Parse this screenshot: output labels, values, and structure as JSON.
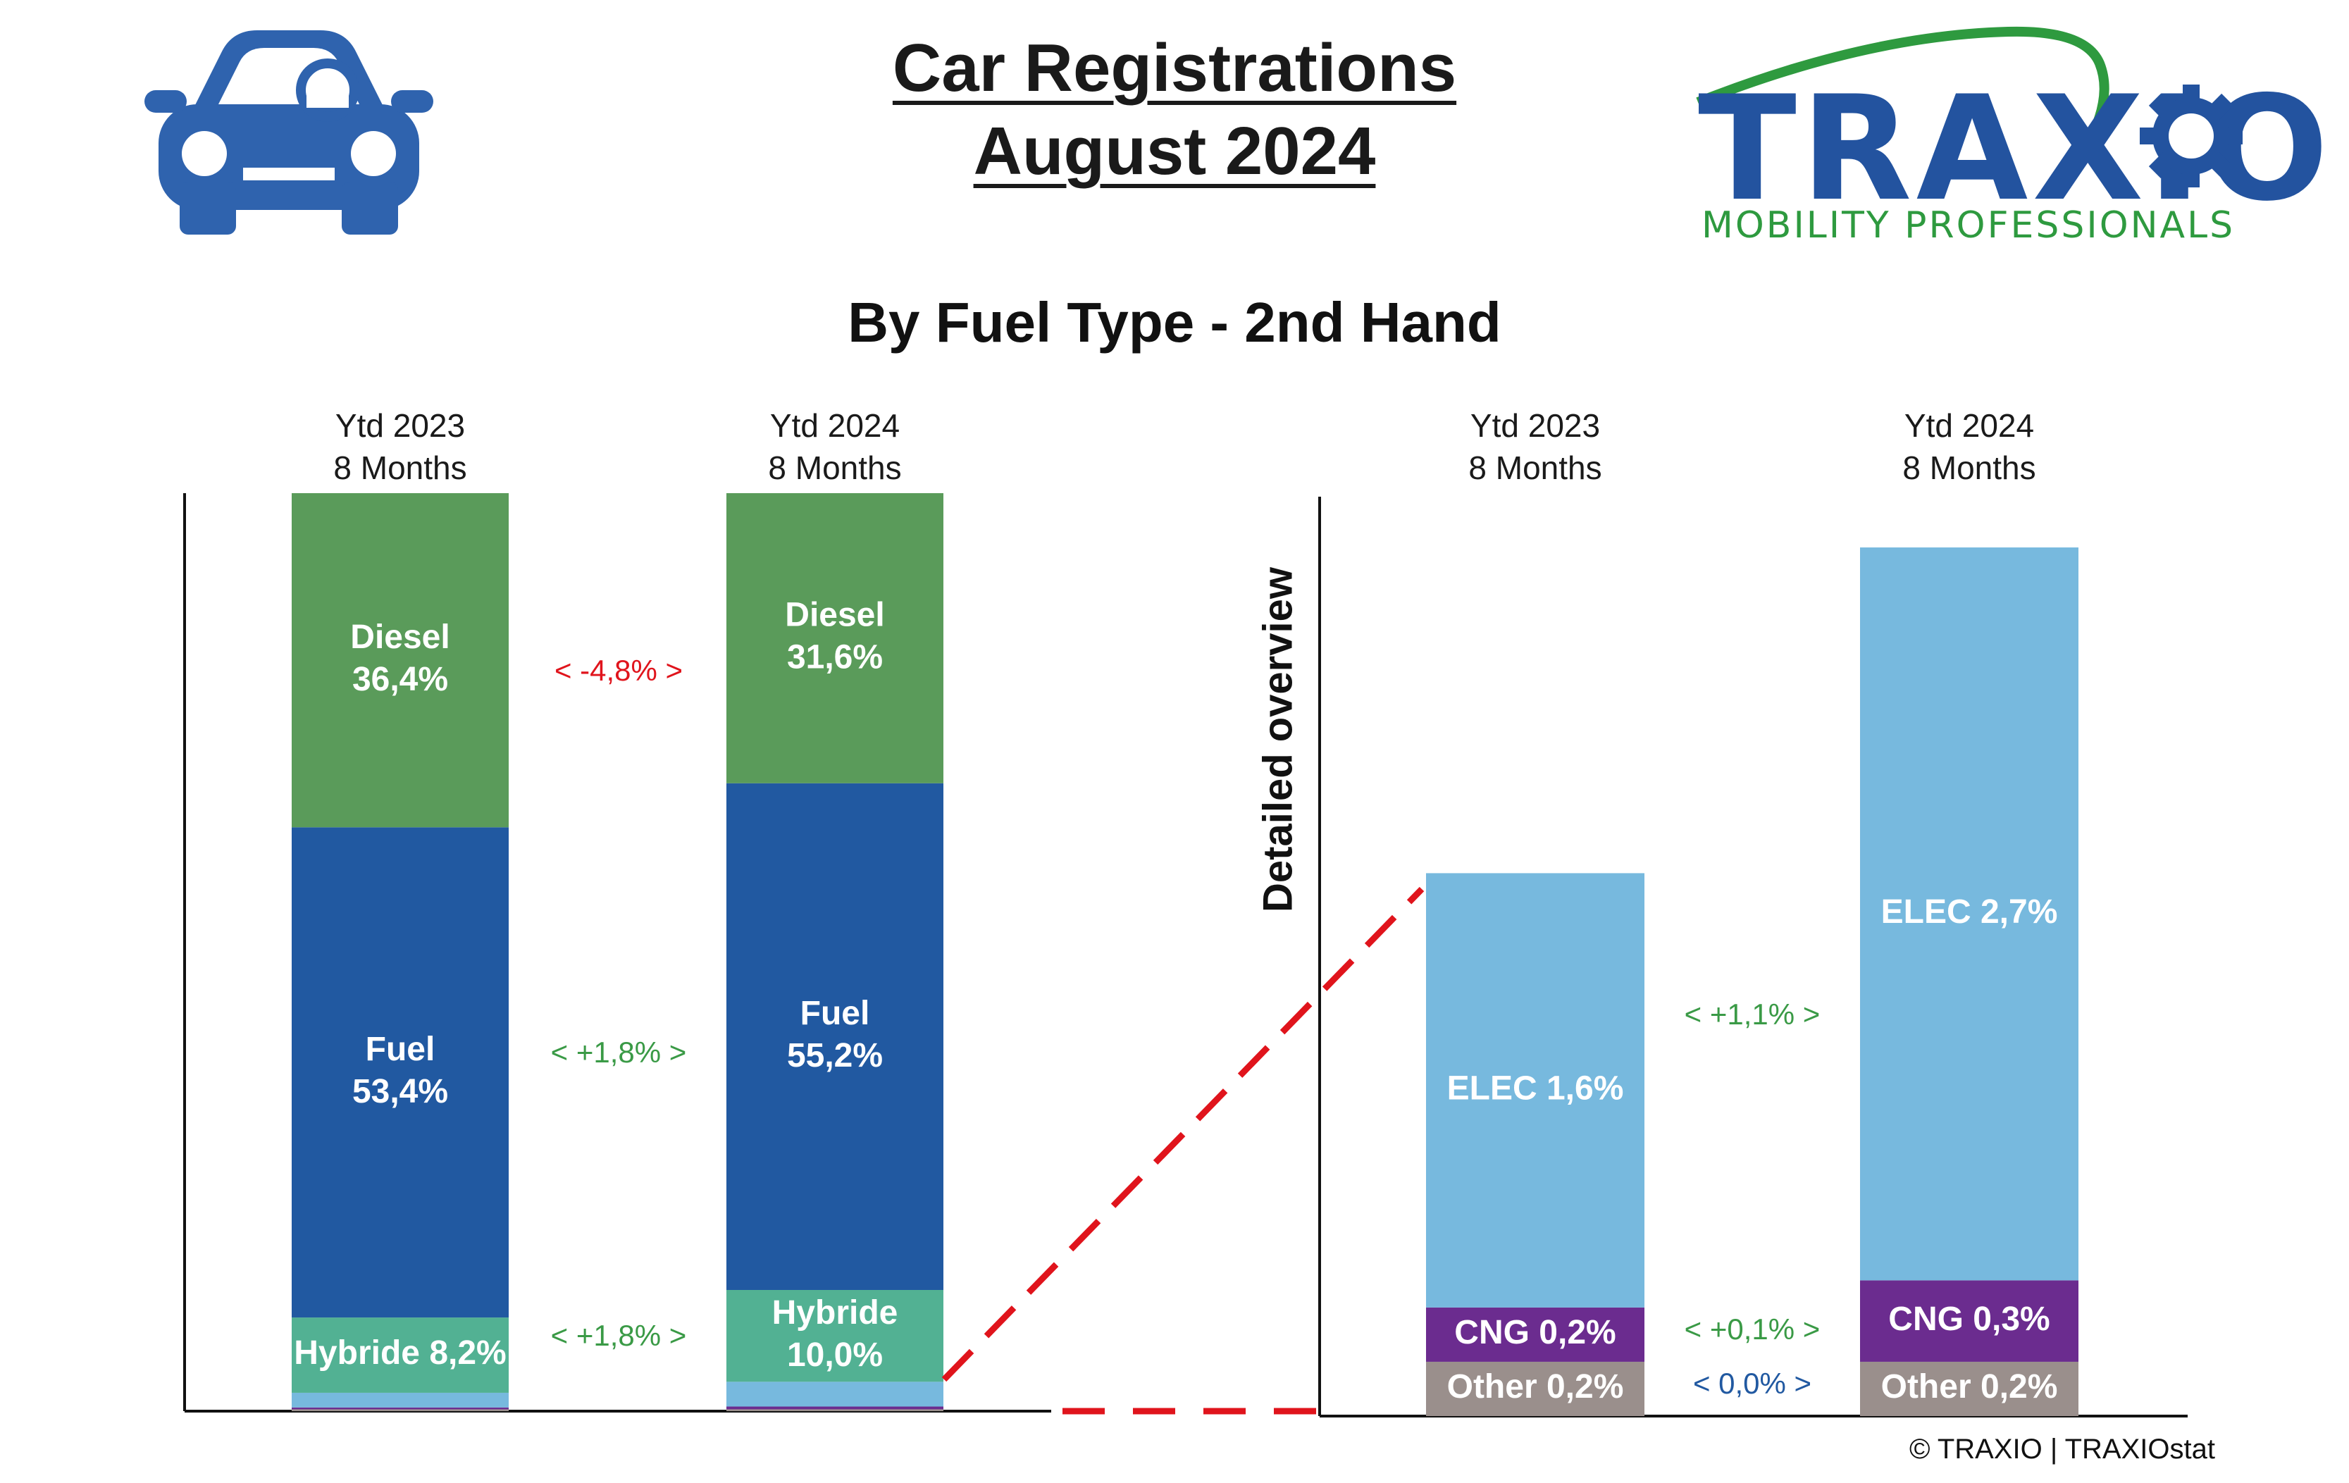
{
  "header": {
    "title_line1": "Car Registrations",
    "title_line2": "August 2024",
    "subtitle": "By Fuel Type - 2nd Hand",
    "logo_name": "TRAXIO",
    "logo_tagline": "MOBILITY PROFESSIONALS",
    "car_icon": "car-front-icon",
    "gear_icon": "gear-icon"
  },
  "footer": {
    "copyright": "© TRAXIO | TRAXIOstat"
  },
  "colors": {
    "diesel": "#5a9b5a",
    "fuel": "#2159a1",
    "hybride": "#52b193",
    "elec": "#77b9de",
    "cng": "#6b2c8f",
    "other": "#9a8f8c",
    "positive": "#3a9a46",
    "negative": "#e0141c",
    "neutral": "#2159a1",
    "connector": "#e0141c",
    "brand_blue": "#23539f",
    "brand_green": "#2e9a3f"
  },
  "chart_data": [
    {
      "type": "bar",
      "stacked": true,
      "categories": [
        "Ytd 2023\n8 Months",
        "Ytd 2024\n8 Months"
      ],
      "category_lines": [
        [
          "Ytd 2023",
          "8 Months"
        ],
        [
          "Ytd 2024",
          "8 Months"
        ]
      ],
      "ylim": [
        0,
        100
      ],
      "series": [
        {
          "name": "Other",
          "values": [
            0.2,
            0.2
          ],
          "labels": [
            "",
            ""
          ]
        },
        {
          "name": "CNG",
          "values": [
            0.2,
            0.3
          ],
          "labels": [
            "",
            ""
          ]
        },
        {
          "name": "ELEC",
          "values": [
            1.6,
            2.7
          ],
          "labels": [
            "",
            ""
          ]
        },
        {
          "name": "Hybride",
          "values": [
            8.2,
            10.0
          ],
          "labels": [
            [
              "Hybride 8,2%"
            ],
            [
              "Hybride",
              "10,0%"
            ]
          ]
        },
        {
          "name": "Fuel",
          "values": [
            53.4,
            55.2
          ],
          "labels": [
            [
              "Fuel",
              "53,4%"
            ],
            [
              "Fuel",
              "55,2%"
            ]
          ]
        },
        {
          "name": "Diesel",
          "values": [
            36.4,
            31.6
          ],
          "labels": [
            [
              "Diesel",
              "36,4%"
            ],
            [
              "Diesel",
              "31,6%"
            ]
          ]
        }
      ],
      "changes": [
        {
          "series": "Diesel",
          "text": "<  -4,8%  >",
          "sign": "negative"
        },
        {
          "series": "Fuel",
          "text": "<  +1,8%  >",
          "sign": "positive"
        },
        {
          "series": "Hybride",
          "text": "<  +1,8%  >",
          "sign": "positive"
        }
      ]
    },
    {
      "type": "bar",
      "stacked": true,
      "title": "Detailed overview",
      "categories": [
        "Ytd 2023\n8 Months",
        "Ytd 2024\n8 Months"
      ],
      "category_lines": [
        [
          "Ytd 2023",
          "8 Months"
        ],
        [
          "Ytd 2024",
          "8 Months"
        ]
      ],
      "ylim": [
        0,
        3.4
      ],
      "series": [
        {
          "name": "Other",
          "values": [
            0.2,
            0.2
          ],
          "labels": [
            [
              "Other 0,2%"
            ],
            [
              "Other 0,2%"
            ]
          ]
        },
        {
          "name": "CNG",
          "values": [
            0.2,
            0.3
          ],
          "labels": [
            [
              "CNG 0,2%"
            ],
            [
              "CNG 0,3%"
            ]
          ]
        },
        {
          "name": "ELEC",
          "values": [
            1.6,
            2.7
          ],
          "labels": [
            [
              "ELEC 1,6%"
            ],
            [
              "ELEC 2,7%"
            ]
          ]
        }
      ],
      "changes": [
        {
          "series": "ELEC",
          "text": "<  +1,1%  >",
          "sign": "positive"
        },
        {
          "series": "CNG",
          "text": "<  +0,1%  >",
          "sign": "positive"
        },
        {
          "series": "Other",
          "text": "<  0,0%  >",
          "sign": "neutral"
        }
      ]
    }
  ]
}
